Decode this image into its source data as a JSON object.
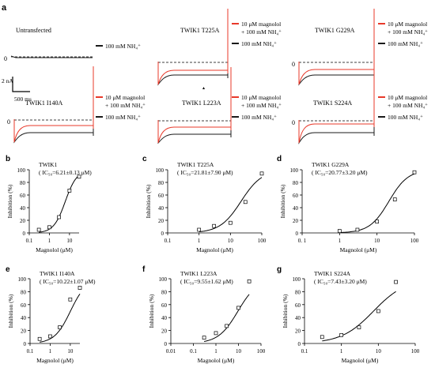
{
  "figure_label": "a",
  "colors": {
    "magnolol": "#e8392a",
    "nh4": "#1a1a1a",
    "baseline": "#000000"
  },
  "traces": [
    {
      "panel": "Untransfected",
      "title": "Untransfected",
      "zero_label": "0",
      "legend": {
        "black": "100 mM NH₄⁺"
      },
      "scale_bar": {
        "current": "2 nA",
        "time": "500 ms"
      }
    },
    {
      "panel": "T225A",
      "title": "TWIK1 T225A",
      "legend": {
        "red_line1": "10 μM magnolol",
        "red_line2": "+ 100 mM NH₄⁺",
        "black": "100 mM NH₄⁺"
      },
      "marker": "▴"
    },
    {
      "panel": "G229A",
      "title": "TWIK1 G229A",
      "zero_label": "0",
      "legend": {
        "red_line1": "10 μM magnolol",
        "red_line2": "+ 100 mM NH₄⁺",
        "black": "100 mM NH₄⁺"
      }
    },
    {
      "panel": "I140A",
      "title": "TWIK1 I140A",
      "zero_label": "0",
      "legend": {
        "red_line1": "10 μM magnolol",
        "red_line2": "+ 100 mM NH₄⁺",
        "black": "100 mM NH₄⁺"
      }
    },
    {
      "panel": "L223A",
      "title": "TWIK1 L223A",
      "legend": {
        "red_line1": "10 μM magnolol",
        "red_line2": "+ 100 mM NH₄⁺",
        "black": "100 mM NH₄⁺"
      }
    },
    {
      "panel": "S224A",
      "title": "TWIK1 S224A",
      "zero_label": "0",
      "legend": {
        "red_line1": "10 μM magnolol",
        "red_line2": "+ 100 mM NH₄⁺",
        "black": "100 mM NH₄⁺"
      }
    }
  ],
  "chart_data": [
    {
      "panel_label": "b",
      "type": "scatter",
      "fit": "hill",
      "title": "TWIK1",
      "subtitle": "( IC₅₀=6.21±0.13 μM)",
      "xlabel": "Magnolol (μM)",
      "ylabel": "Inhibition (%)",
      "x_scale": "log",
      "xlim": [
        0.1,
        30
      ],
      "ylim": [
        0,
        100
      ],
      "x_ticks": [
        0.1,
        1,
        10
      ],
      "x_tick_labels": [
        "0.1",
        "1",
        "10"
      ],
      "y_ticks": [
        0,
        20,
        40,
        60,
        80,
        100
      ],
      "y_tick_labels": [
        "0",
        "20",
        "40",
        "60",
        "80",
        "100"
      ],
      "x": [
        0.3,
        1,
        3,
        10,
        30
      ],
      "y": [
        5,
        9,
        25,
        67,
        89
      ],
      "ic50": 6.21,
      "hill": 1.5
    },
    {
      "panel_label": "c",
      "type": "scatter",
      "fit": "hill",
      "title": "TWIK1 T225A",
      "subtitle": "( IC₅₀=21.81±7.90 μM)",
      "xlabel": "Magnolol (μM)",
      "ylabel": "Inhibition (%)",
      "x_scale": "log",
      "xlim": [
        0.1,
        100
      ],
      "ylim": [
        0,
        100
      ],
      "x_ticks": [
        0.1,
        1,
        10,
        100
      ],
      "x_tick_labels": [
        "0.1",
        "1",
        "10",
        "100"
      ],
      "y_ticks": [
        0,
        20,
        40,
        60,
        80,
        100
      ],
      "y_tick_labels": [
        "0",
        "20",
        "40",
        "60",
        "80",
        "100"
      ],
      "x": [
        1,
        3,
        10,
        30,
        100
      ],
      "y": [
        5,
        11,
        16,
        49,
        94
      ],
      "ic50": 21.81,
      "hill": 1.3
    },
    {
      "panel_label": "d",
      "type": "scatter",
      "fit": "hill",
      "title": "TWIK1 G229A",
      "subtitle": "( IC₅₀=20.77±3.20 μM)",
      "xlabel": "Magnolol (μM)",
      "ylabel": "Inhibition (%)",
      "x_scale": "log",
      "xlim": [
        0.1,
        100
      ],
      "ylim": [
        0,
        100
      ],
      "x_ticks": [
        0.1,
        1,
        10,
        100
      ],
      "x_tick_labels": [
        "0. 1",
        "1",
        "10",
        "100"
      ],
      "y_ticks": [
        0,
        20,
        40,
        60,
        80,
        100
      ],
      "y_tick_labels": [
        "0",
        "20",
        "40",
        "60",
        "80",
        "100"
      ],
      "x": [
        1,
        3,
        10,
        30,
        100
      ],
      "y": [
        3,
        5,
        18,
        53,
        96
      ],
      "ic50": 20.77,
      "hill": 1.7
    },
    {
      "panel_label": "e",
      "type": "scatter",
      "fit": "hill",
      "title": "TWIK1 I140A",
      "subtitle": "( IC₅₀=10.22±1.07 μM)",
      "xlabel": "Magnolol (μM)",
      "ylabel": "Inhibition (%)",
      "x_scale": "log",
      "xlim": [
        0.1,
        30
      ],
      "ylim": [
        0,
        100
      ],
      "x_ticks": [
        0.1,
        1,
        10
      ],
      "x_tick_labels": [
        "0.1",
        "1",
        "10"
      ],
      "y_ticks": [
        0,
        20,
        40,
        60,
        80,
        100
      ],
      "y_tick_labels": [
        "0",
        "20",
        "40",
        "60",
        "80",
        "100"
      ],
      "x": [
        0.3,
        1,
        3,
        10,
        30
      ],
      "y": [
        7,
        11,
        25,
        68,
        86
      ],
      "ic50": 10.22,
      "hill": 1.1
    },
    {
      "panel_label": "f",
      "type": "scatter",
      "fit": "hill",
      "title": "TWIK1 L223A",
      "subtitle": "( IC₅₀=9.55±1.62 μM)",
      "xlabel": "Magnolol (μM)",
      "ylabel": "Inhibition (%)",
      "x_scale": "log",
      "xlim": [
        0.01,
        100
      ],
      "ylim": [
        0,
        100
      ],
      "x_ticks": [
        0.01,
        0.1,
        1,
        10,
        100
      ],
      "x_tick_labels": [
        "0.01",
        "0.1",
        "1",
        "10",
        "100"
      ],
      "y_ticks": [
        0,
        20,
        40,
        60,
        80,
        100
      ],
      "y_tick_labels": [
        "0",
        "20",
        "40",
        "60",
        "80",
        "100"
      ],
      "x": [
        0.3,
        1,
        3,
        10,
        30
      ],
      "y": [
        9,
        16,
        27,
        55,
        96
      ],
      "ic50": 9.55,
      "hill": 1.0
    },
    {
      "panel_label": "g",
      "type": "scatter",
      "fit": "hill",
      "title": "TWIK1 S224A",
      "subtitle": "( IC₅₀=7.43±3.20 μM)",
      "xlabel": "Magnolol (μM)",
      "ylabel": "Inhibition (%)",
      "x_scale": "log",
      "xlim": [
        0.1,
        100
      ],
      "ylim": [
        0,
        100
      ],
      "x_ticks": [
        0.1,
        1,
        10,
        100
      ],
      "x_tick_labels": [
        "0.1",
        "1",
        "10",
        "100"
      ],
      "y_ticks": [
        0,
        20,
        40,
        60,
        80,
        100
      ],
      "y_tick_labels": [
        "0",
        "20",
        "40",
        "60",
        "80",
        "100"
      ],
      "x": [
        0.3,
        1,
        3,
        10,
        30
      ],
      "y": [
        10,
        13,
        25,
        50,
        95
      ],
      "ic50": 7.43,
      "hill": 1.0
    }
  ]
}
